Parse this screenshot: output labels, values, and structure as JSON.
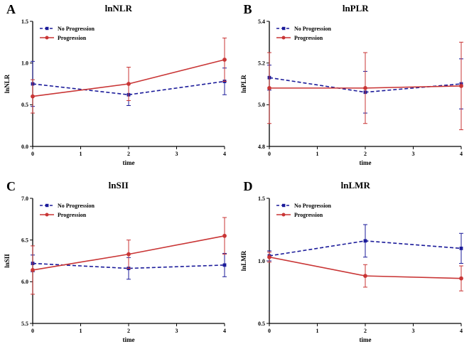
{
  "page": {
    "background": "#ffffff"
  },
  "colors": {
    "no_progression": "#1b1b9a",
    "progression": "#c93535",
    "axis": "#000000"
  },
  "chart_data": [
    {
      "type": "line",
      "panel_label": "A",
      "title": "lnNLR",
      "xlabel": "time",
      "ylabel": "lnNLR",
      "xlim": [
        0,
        4
      ],
      "ylim": [
        0.0,
        1.5
      ],
      "xtick_values": [
        0,
        1,
        2,
        3,
        4
      ],
      "xtick_labels": [
        "0",
        "1",
        "2",
        "3",
        "4"
      ],
      "ytick_values": [
        0.0,
        0.5,
        1.0,
        1.5
      ],
      "ytick_labels": [
        "0.0",
        "0.5",
        "1.0",
        "1.5"
      ],
      "x": [
        0,
        2,
        4
      ],
      "grid": false,
      "legend_position": "top-left",
      "series": [
        {
          "name": "No Progression",
          "color": "#1b1b9a",
          "dash": true,
          "marker": "square",
          "values": [
            0.75,
            0.62,
            0.78
          ],
          "errors": [
            0.27,
            0.13,
            0.16
          ]
        },
        {
          "name": "Progression",
          "color": "#c93535",
          "dash": false,
          "marker": "circle",
          "values": [
            0.6,
            0.75,
            1.04
          ],
          "errors": [
            0.2,
            0.2,
            0.26
          ]
        }
      ]
    },
    {
      "type": "line",
      "panel_label": "B",
      "title": "lnPLR",
      "xlabel": "time",
      "ylabel": "lnPLR",
      "xlim": [
        0,
        4
      ],
      "ylim": [
        4.8,
        5.4
      ],
      "xtick_values": [
        0,
        1,
        2,
        3,
        4
      ],
      "xtick_labels": [
        "0",
        "1",
        "2",
        "3",
        "4"
      ],
      "ytick_values": [
        4.8,
        5.0,
        5.2,
        5.4
      ],
      "ytick_labels": [
        "4.8",
        "5.0",
        "5.2",
        "5.4"
      ],
      "x": [
        0,
        2,
        4
      ],
      "grid": false,
      "legend_position": "top-left",
      "series": [
        {
          "name": "No Progression",
          "color": "#1b1b9a",
          "dash": true,
          "marker": "square",
          "values": [
            5.13,
            5.06,
            5.1
          ],
          "errors": [
            0.06,
            0.1,
            0.12
          ]
        },
        {
          "name": "Progression",
          "color": "#c93535",
          "dash": false,
          "marker": "circle",
          "values": [
            5.08,
            5.08,
            5.09
          ],
          "errors": [
            0.17,
            0.17,
            0.21
          ]
        }
      ]
    },
    {
      "type": "line",
      "panel_label": "C",
      "title": "lnSII",
      "xlabel": "time",
      "ylabel": "lnSII",
      "xlim": [
        0,
        4
      ],
      "ylim": [
        5.5,
        7.0
      ],
      "xtick_values": [
        0,
        1,
        2,
        3,
        4
      ],
      "xtick_labels": [
        "0",
        "1",
        "2",
        "3",
        "4"
      ],
      "ytick_values": [
        5.5,
        6.0,
        6.5,
        7.0
      ],
      "ytick_labels": [
        "5.5",
        "6.0",
        "6.5",
        "7.0"
      ],
      "x": [
        0,
        2,
        4
      ],
      "grid": false,
      "legend_position": "top-left",
      "series": [
        {
          "name": "No Progression",
          "color": "#1b1b9a",
          "dash": true,
          "marker": "square",
          "values": [
            6.22,
            6.16,
            6.2
          ],
          "errors": [
            0.1,
            0.13,
            0.14
          ]
        },
        {
          "name": "Progression",
          "color": "#c93535",
          "dash": false,
          "marker": "circle",
          "values": [
            6.14,
            6.33,
            6.55
          ],
          "errors": [
            0.29,
            0.17,
            0.22
          ]
        }
      ]
    },
    {
      "type": "line",
      "panel_label": "D",
      "title": "lnLMR",
      "xlabel": "time",
      "ylabel": "lnLMR",
      "xlim": [
        0,
        4
      ],
      "ylim": [
        0.5,
        1.5
      ],
      "xtick_values": [
        0,
        1,
        2,
        3,
        4
      ],
      "xtick_labels": [
        "0",
        "1",
        "2",
        "3",
        "4"
      ],
      "ytick_values": [
        0.5,
        1.0,
        1.5
      ],
      "ytick_labels": [
        "0.5",
        "1.0",
        "1.5"
      ],
      "x": [
        0,
        2,
        4
      ],
      "grid": false,
      "legend_position": "top-left",
      "series": [
        {
          "name": "No Progression",
          "color": "#1b1b9a",
          "dash": true,
          "marker": "square",
          "values": [
            1.04,
            1.16,
            1.1
          ],
          "errors": [
            0.04,
            0.13,
            0.12
          ]
        },
        {
          "name": "Progression",
          "color": "#c93535",
          "dash": false,
          "marker": "circle",
          "values": [
            1.03,
            0.88,
            0.86
          ],
          "errors": [
            0.04,
            0.09,
            0.1
          ]
        }
      ]
    }
  ]
}
